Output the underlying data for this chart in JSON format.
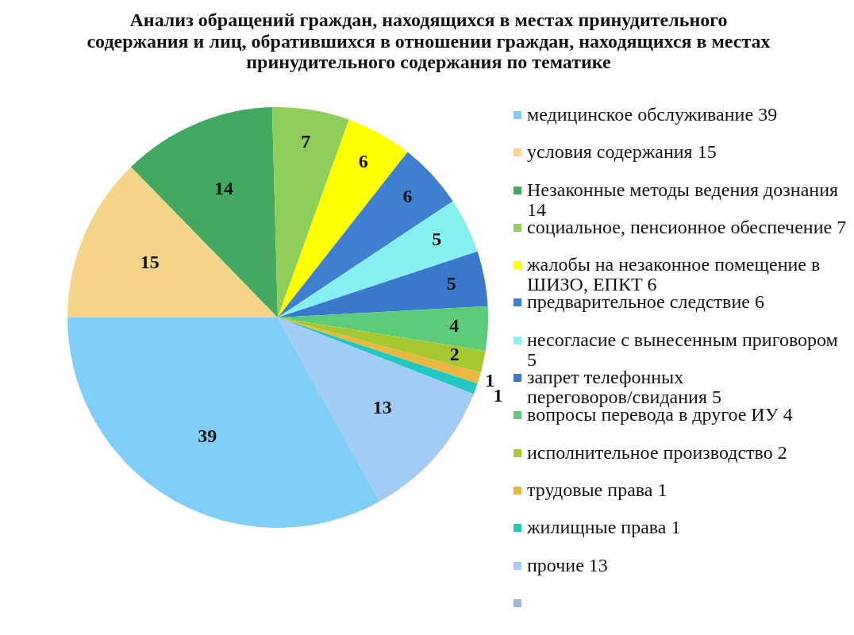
{
  "chart_data": {
    "type": "pie",
    "title": "Анализ обращений граждан, находящихся в местах принудительного содержания и лиц, обратившихся в отношении граждан, находящихся в местах принудительного содержания по тематике",
    "categories": [
      "медицинское обслуживание 39",
      "условия содержания 15",
      "Незаконные методы ведения дознания 14",
      "социальное, пенсионное обеспечение 7",
      "жалобы на незаконное помещение в ШИЗО, ЕПКТ 6",
      "предварительное следствие 6",
      "несогласие с вынесенным приговором 5",
      "запрет телефонных переговоров/свидания 5",
      "вопросы перевода в другое ИУ 4",
      "исполнительное производство 2",
      "трудовые права 1",
      "жилищные права 1",
      "прочие 13",
      null
    ],
    "values": [
      39,
      15,
      14,
      7,
      6,
      6,
      5,
      5,
      4,
      2,
      1,
      1,
      13,
      0
    ],
    "value_labels": [
      "39",
      "15",
      "14",
      "7",
      "6",
      "6",
      "5",
      "5",
      "4",
      "2",
      "1",
      "1",
      "13",
      null
    ],
    "colors": [
      "#80cef5",
      "#f5d48c",
      "#45a860",
      "#8fce5a",
      "#ffff00",
      "#3f7fd0",
      "#86f0f0",
      "#3a78cc",
      "#5ccc7a",
      "#a6c832",
      "#e8b840",
      "#20c8c0",
      "#a2ccf5",
      "#a4b4d4"
    ],
    "legend": "right"
  }
}
